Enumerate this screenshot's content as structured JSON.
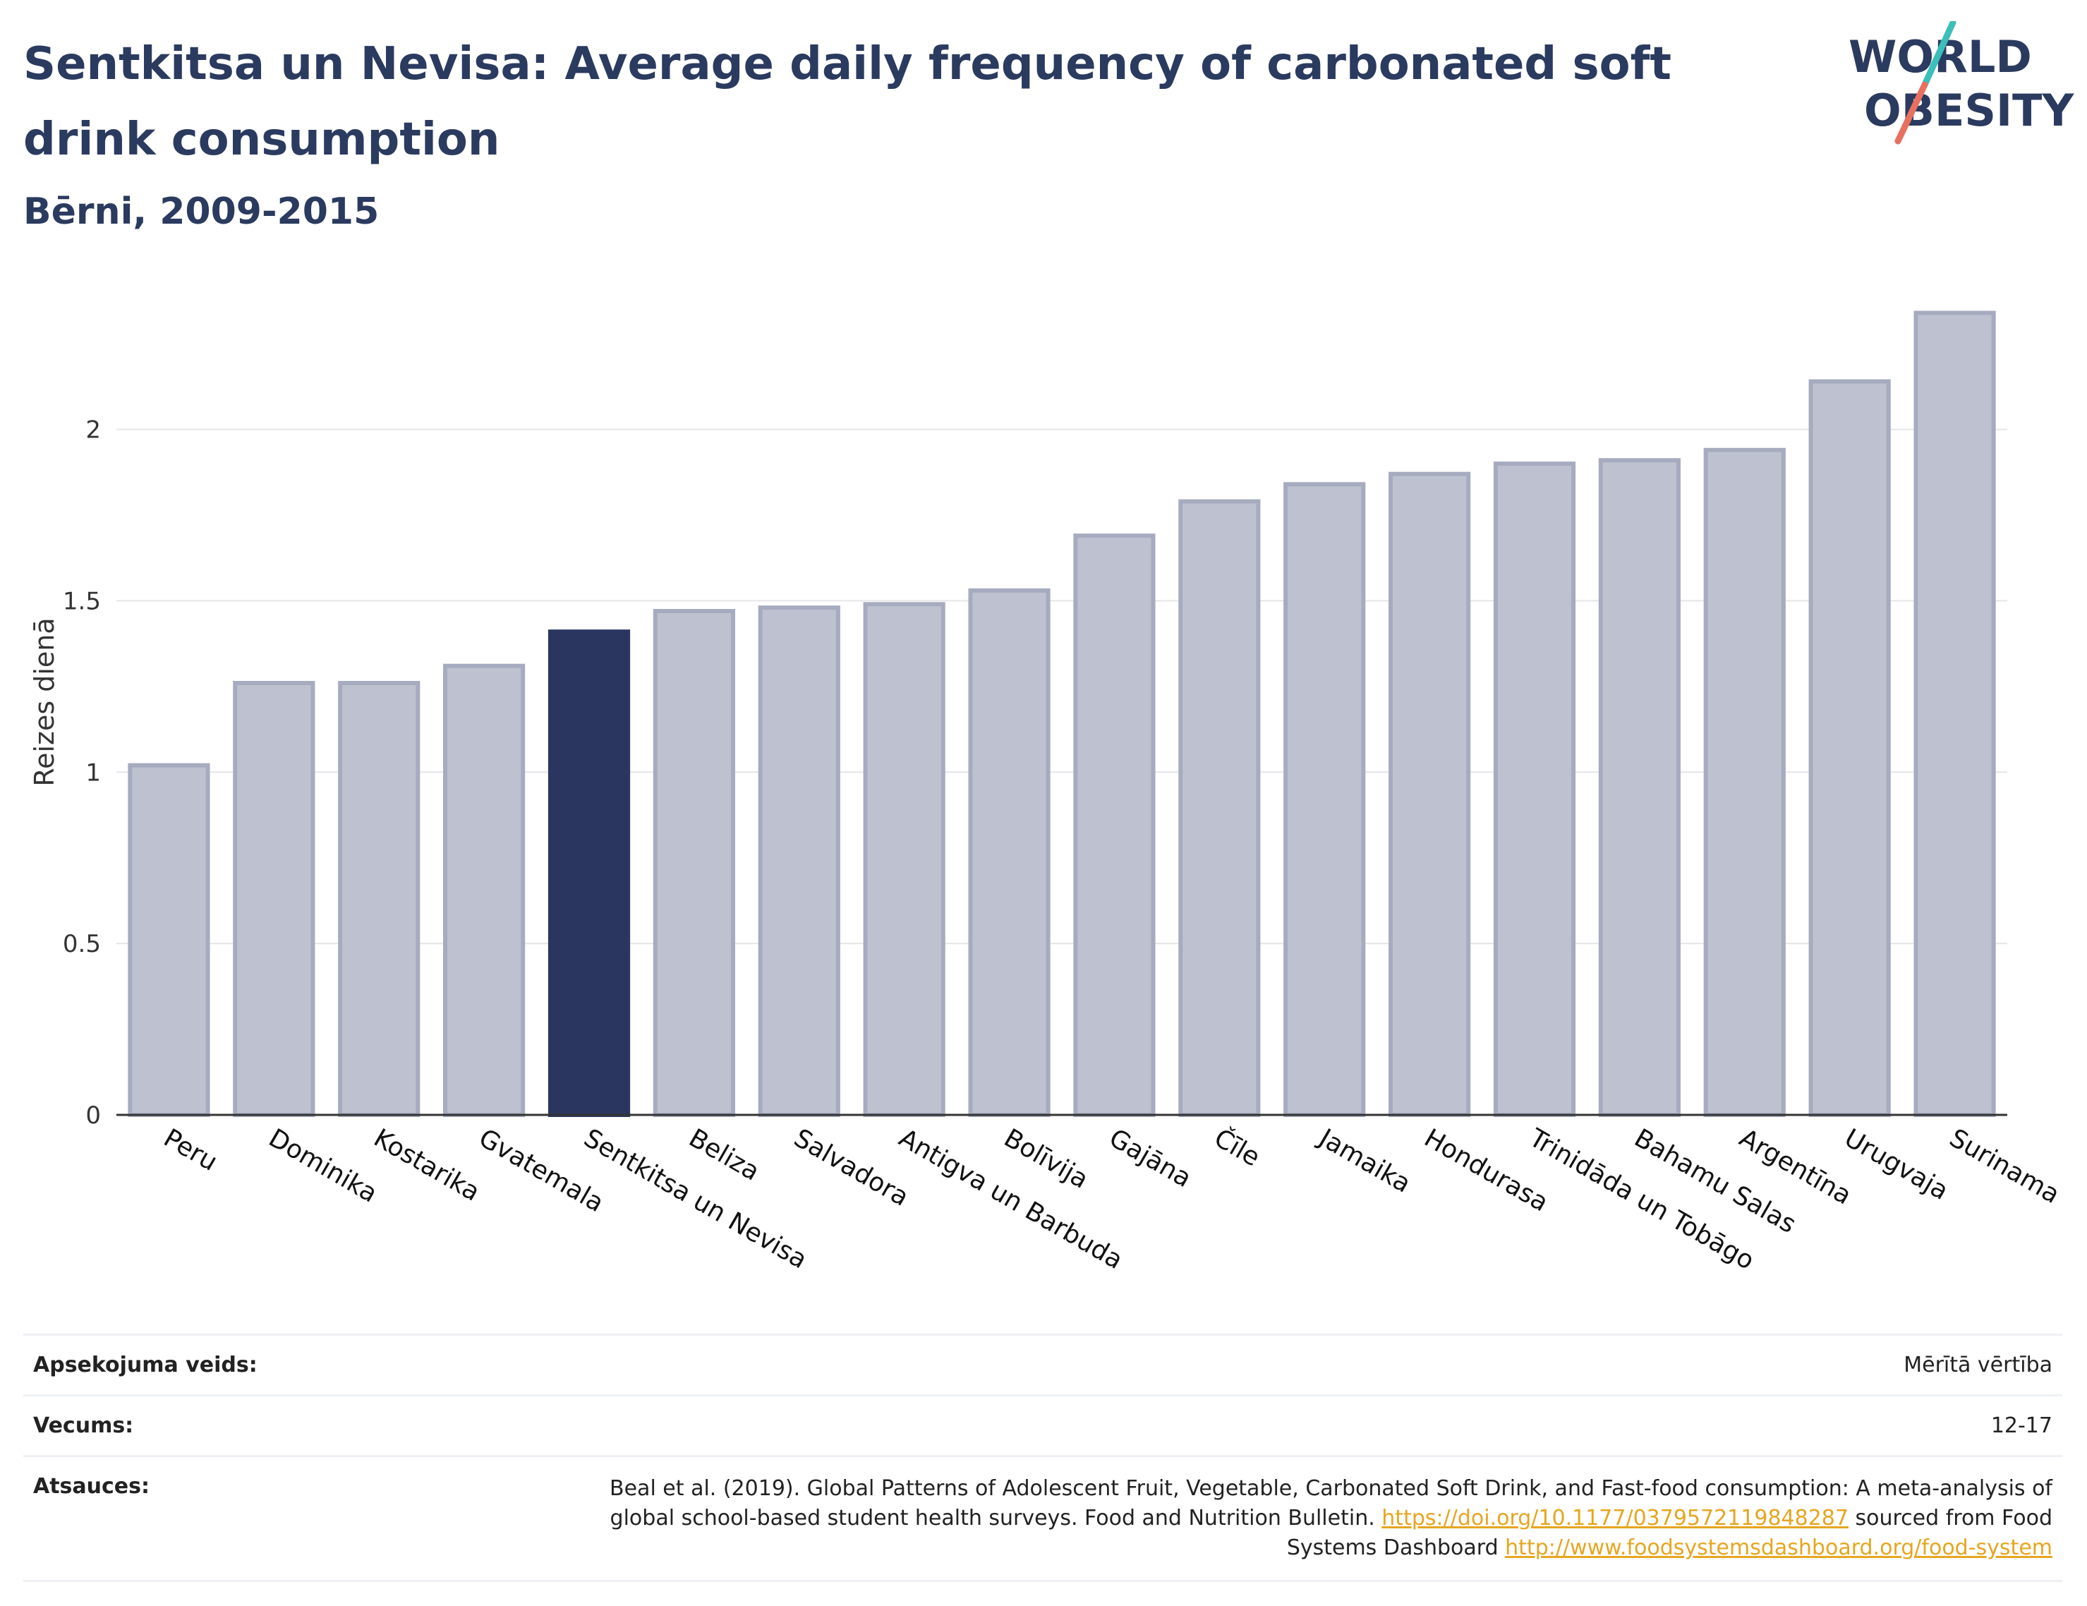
{
  "header": {
    "title": "Sentkitsa un Nevisa: Average daily frequency of carbonated soft drink consumption",
    "subtitle": "Bērni, 2009-2015"
  },
  "logo": {
    "line1": "WORLD",
    "line2": "OBESITY",
    "accent_teal": "#3bbfb8",
    "accent_coral": "#e8705f",
    "text_color": "#2b3a5f"
  },
  "colors": {
    "bar_default": "#bec2d0",
    "bar_default_stroke": "#a6abbf",
    "bar_highlight": "#2b3660",
    "grid": "#e6e6ea",
    "axis": "#333333"
  },
  "chart_data": {
    "type": "bar",
    "ylabel": "Reizes dienā",
    "ylim": [
      0,
      2.45
    ],
    "yticks": [
      0,
      0.5,
      1,
      1.5,
      2
    ],
    "ytick_labels": [
      "0",
      "0.5",
      "1",
      "1.5",
      "2"
    ],
    "grid": true,
    "highlight": "Sentkitsa un Nevisa",
    "categories": [
      "Peru",
      "Dominika",
      "Kostarika",
      "Gvatemala",
      "Sentkitsa un Nevisa",
      "Beliza",
      "Salvadora",
      "Antigva un Barbuda",
      "Bolīvija",
      "Gajāna",
      "Čīle",
      "Jamaika",
      "Hondurasa",
      "Trinidāda un Tobāgo",
      "Bahamu Salas",
      "Argentīna",
      "Urugvaja",
      "Surinama"
    ],
    "values": [
      1.02,
      1.26,
      1.26,
      1.31,
      1.41,
      1.47,
      1.48,
      1.49,
      1.53,
      1.69,
      1.79,
      1.84,
      1.87,
      1.9,
      1.91,
      1.94,
      2.14,
      2.34
    ]
  },
  "meta": {
    "survey_label": "Apsekojuma veids:",
    "survey_value": "Mērītā vērtība",
    "age_label": "Vecums:",
    "age_value": "12-17",
    "sources_label": "Atsauces:",
    "sources_text_1": "Beal et al. (2019). Global Patterns of Adolescent Fruit, Vegetable, Carbonated Soft Drink, and Fast-food consumption: A meta-analysis of global school-based student health surveys. Food and Nutrition Bulletin. ",
    "sources_link_1": "https://doi.org/10.1177/0379572119848287",
    "sources_text_2": " sourced from Food Systems Dashboard ",
    "sources_link_2": "http://www.foodsystemsdashboard.org/food-system"
  }
}
